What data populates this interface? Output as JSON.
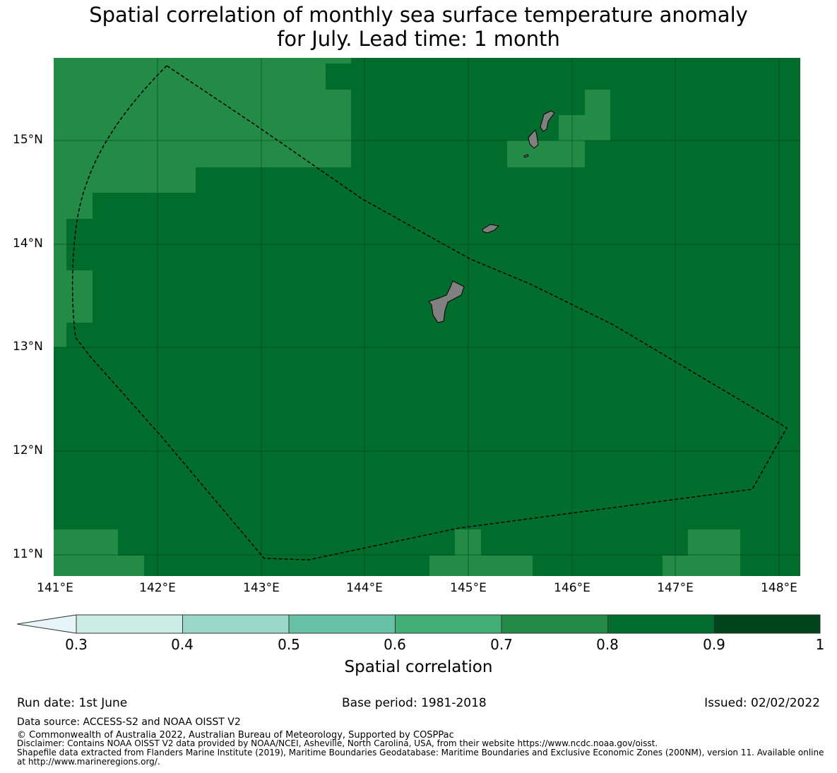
{
  "title_line1": "Spatial correlation of monthly sea surface temperature anomaly",
  "title_line2": "for July. Lead time: 1 month",
  "map": {
    "lon_range": [
      141.0,
      148.2
    ],
    "lat_range": [
      10.8,
      15.8
    ],
    "lat_ticks": [
      "15°N",
      "14°N",
      "13°N",
      "12°N",
      "11°N"
    ],
    "lon_ticks": [
      "141°E",
      "142°E",
      "143°E",
      "144°E",
      "145°E",
      "146°E",
      "147°E",
      "148°E"
    ],
    "colors": {
      "band_0_7_0_8": "#238b45",
      "band_0_8_0_9": "#006d2c",
      "land": "#808080"
    }
  },
  "colorbar": {
    "title": "Spatial correlation",
    "ticks": [
      "0.3",
      "0.4",
      "0.5",
      "0.6",
      "0.7",
      "0.8",
      "0.9",
      "1"
    ],
    "extend": "min",
    "colors": [
      "#e5f5f9",
      "#ccece6",
      "#99d8c9",
      "#66c2a4",
      "#41ae76",
      "#238b45",
      "#006d2c",
      "#00441b"
    ]
  },
  "footer": {
    "run_date": "Run date: 1st June",
    "base_period": "Base period: 1981-2018",
    "issued": "Issued: 02/02/2022",
    "data_source": "Data source: ACCESS-S2 and NOAA OISST V2",
    "copyright": "© Commonwealth of Australia 2022, Australian Bureau of Meteorology, Supported by COSPPac",
    "disclaimer": "Disclaimer: Contains NOAA OISST V2 data provided by NOAA/NCEI, Asheville, North Carolina, USA, from their website https://www.ncdc.noaa.gov/oisst.",
    "shapefile_line1": "Shapefile data extracted from Flanders Marine Institute (2019), Maritime Boundaries Geodatabase: Maritime Boundaries and Exclusive Economic Zones (200NM), version 11. Available online",
    "shapefile_line2": "at http://www.marineregions.org/."
  }
}
